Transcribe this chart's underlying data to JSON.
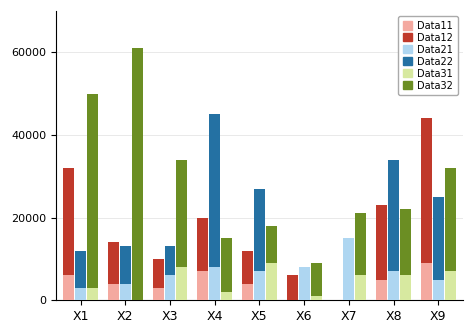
{
  "categories": [
    "X1",
    "X2",
    "X3",
    "X4",
    "X5",
    "X6",
    "X7",
    "X8",
    "X9"
  ],
  "groups": {
    "group1": {
      "Data11": [
        6000,
        4000,
        3000,
        7000,
        4000,
        0,
        0,
        5000,
        9000
      ],
      "Data12": [
        26000,
        10000,
        7000,
        13000,
        8000,
        6000,
        0,
        18000,
        35000
      ]
    },
    "group2": {
      "Data21": [
        3000,
        4000,
        6000,
        8000,
        7000,
        8000,
        15000,
        7000,
        5000
      ],
      "Data22": [
        9000,
        9000,
        7000,
        37000,
        20000,
        0,
        0,
        27000,
        20000
      ]
    },
    "group3": {
      "Data31": [
        3000,
        0,
        8000,
        2000,
        9000,
        1000,
        6000,
        6000,
        7000
      ],
      "Data32": [
        47000,
        61000,
        26000,
        13000,
        9000,
        8000,
        15000,
        16000,
        25000
      ]
    }
  },
  "colors": {
    "Data11": "#F4A9A0",
    "Data12": "#C0392B",
    "Data21": "#AED6F1",
    "Data22": "#2471A3",
    "Data31": "#D7E9A0",
    "Data32": "#6B8E23"
  },
  "ylim": [
    0,
    70000
  ],
  "yticks": [
    0,
    20000,
    40000,
    60000
  ],
  "bg_color": "white",
  "legend_labels": [
    "Data11",
    "Data12",
    "Data21",
    "Data22",
    "Data31",
    "Data32"
  ],
  "title": ""
}
